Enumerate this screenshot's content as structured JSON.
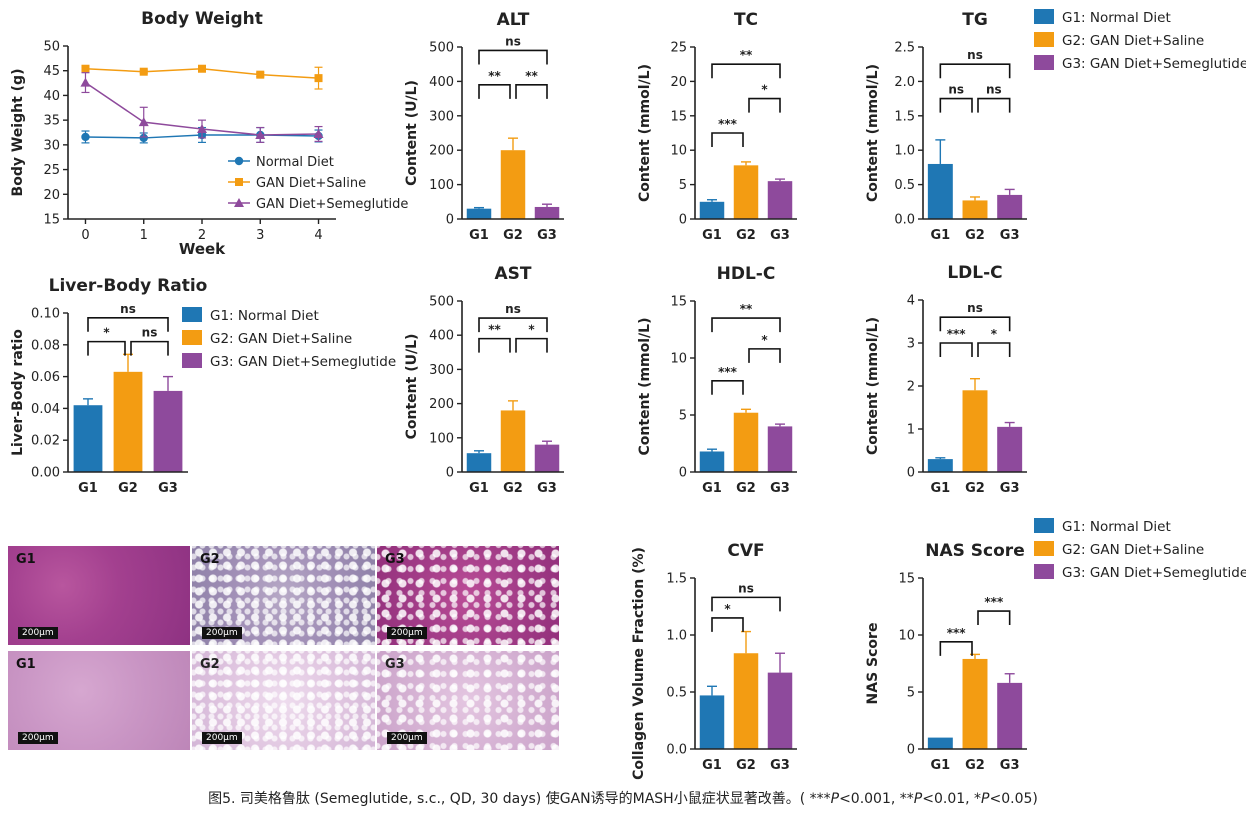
{
  "colors": {
    "G1": "#1f77b4",
    "G2": "#f39c12",
    "G3": "#8e4a9c",
    "axis": "#222222"
  },
  "legend_bar": [
    {
      "label": "G1: Normal Diet",
      "color": "#1f77b4"
    },
    {
      "label": "G2: GAN Diet+Saline",
      "color": "#f39c12"
    },
    {
      "label": "G3: GAN Diet+Semeglutide",
      "color": "#8e4a9c"
    }
  ],
  "histology": {
    "scale_label": "200μm",
    "rows": [
      [
        "G1",
        "G2",
        "G3"
      ],
      [
        "G1",
        "G2",
        "G3"
      ]
    ]
  },
  "caption": {
    "prefix": "图5. 司美格鲁肽 (Semeglutide, s.c., QD, 30 days) 使GAN诱导的MASH小鼠症状显著改善。( ***",
    "p": "P",
    "t1": "<0.001, **",
    "t2": "<0.01, *",
    "t3": "<0.05)"
  },
  "chart_data": [
    {
      "id": "body-weight",
      "type": "line",
      "title": "Body Weight",
      "xlabel": "Week",
      "ylabel": "Body Weight (g)",
      "x": [
        0,
        1,
        2,
        3,
        4
      ],
      "xlim": [
        -0.3,
        4.3
      ],
      "ylim": [
        15,
        50
      ],
      "yticks": [
        15,
        20,
        25,
        30,
        35,
        40,
        45,
        50
      ],
      "series": [
        {
          "name": "Normal Diet",
          "marker": "circle",
          "color": "#1f77b4",
          "values": [
            31.6,
            31.4,
            32.0,
            32.0,
            31.8
          ],
          "err": [
            1.2,
            1.0,
            1.5,
            1.5,
            1.2
          ]
        },
        {
          "name": "GAN Diet+Saline",
          "marker": "square",
          "color": "#f39c12",
          "values": [
            45.4,
            44.8,
            45.4,
            44.2,
            43.5
          ],
          "err": [
            0.3,
            0.3,
            0.3,
            0.4,
            2.2
          ]
        },
        {
          "name": "GAN Diet+Semeglutide",
          "marker": "triangle",
          "color": "#8e4a9c",
          "values": [
            42.6,
            34.6,
            33.2,
            32.0,
            32.2
          ],
          "err": [
            2.0,
            3.0,
            1.8,
            1.5,
            1.5
          ]
        }
      ],
      "legend": "bottom-right"
    },
    {
      "id": "liver-body-ratio",
      "type": "bar",
      "title": "Liver-Body Ratio",
      "ylabel": "Liver-Body ratio",
      "categories": [
        "G1",
        "G2",
        "G3"
      ],
      "values": [
        0.042,
        0.063,
        0.051
      ],
      "err": [
        0.004,
        0.011,
        0.009
      ],
      "ylim": [
        0,
        0.1
      ],
      "yticks": [
        0.0,
        0.02,
        0.04,
        0.06,
        0.08,
        0.1
      ],
      "ytick_labels": [
        "0.00",
        "0.02",
        "0.04",
        "0.06",
        "0.08",
        "0.10"
      ],
      "sig": [
        {
          "a": 0,
          "b": 1,
          "y": 0.082,
          "label": "*"
        },
        {
          "a": 1,
          "b": 2,
          "y": 0.082,
          "label": "ns"
        },
        {
          "a": 0,
          "b": 2,
          "y": 0.097,
          "label": "ns"
        }
      ],
      "legend": "right"
    },
    {
      "id": "alt",
      "type": "bar",
      "title": "ALT",
      "ylabel": "Content (U/L)",
      "categories": [
        "G1",
        "G2",
        "G3"
      ],
      "values": [
        30,
        200,
        35
      ],
      "err": [
        3,
        35,
        8
      ],
      "ylim": [
        0,
        500
      ],
      "yticks": [
        0,
        100,
        200,
        300,
        400,
        500
      ],
      "sig": [
        {
          "a": 0,
          "b": 1,
          "y": 390,
          "label": "**"
        },
        {
          "a": 1,
          "b": 2,
          "y": 390,
          "label": "**"
        },
        {
          "a": 0,
          "b": 2,
          "y": 490,
          "label": "ns"
        }
      ]
    },
    {
      "id": "tc",
      "type": "bar",
      "title": "TC",
      "ylabel": "Content (mmol/L)",
      "categories": [
        "G1",
        "G2",
        "G3"
      ],
      "values": [
        2.5,
        7.8,
        5.5
      ],
      "err": [
        0.3,
        0.5,
        0.3
      ],
      "ylim": [
        0,
        25
      ],
      "yticks": [
        0,
        5,
        10,
        15,
        20,
        25
      ],
      "sig": [
        {
          "a": 0,
          "b": 1,
          "y": 12.5,
          "label": "***"
        },
        {
          "a": 1,
          "b": 2,
          "y": 17.5,
          "label": "*"
        },
        {
          "a": 0,
          "b": 2,
          "y": 22.5,
          "label": "**"
        }
      ]
    },
    {
      "id": "tg",
      "type": "bar",
      "title": "TG",
      "ylabel": "Content (mmol/L)",
      "categories": [
        "G1",
        "G2",
        "G3"
      ],
      "values": [
        0.8,
        0.27,
        0.35
      ],
      "err": [
        0.35,
        0.05,
        0.08
      ],
      "ylim": [
        0,
        2.5
      ],
      "yticks": [
        0.0,
        0.5,
        1.0,
        1.5,
        2.0,
        2.5
      ],
      "ytick_labels": [
        "0.0",
        "0.5",
        "1.0",
        "1.5",
        "2.0",
        "2.5"
      ],
      "sig": [
        {
          "a": 0,
          "b": 1,
          "y": 1.75,
          "label": "ns"
        },
        {
          "a": 1,
          "b": 2,
          "y": 1.75,
          "label": "ns"
        },
        {
          "a": 0,
          "b": 2,
          "y": 2.25,
          "label": "ns"
        }
      ]
    },
    {
      "id": "ast",
      "type": "bar",
      "title": "AST",
      "ylabel": "Content (U/L)",
      "categories": [
        "G1",
        "G2",
        "G3"
      ],
      "values": [
        55,
        180,
        80
      ],
      "err": [
        7,
        28,
        10
      ],
      "ylim": [
        0,
        500
      ],
      "yticks": [
        0,
        100,
        200,
        300,
        400,
        500
      ],
      "sig": [
        {
          "a": 0,
          "b": 1,
          "y": 390,
          "label": "**"
        },
        {
          "a": 1,
          "b": 2,
          "y": 390,
          "label": "*"
        },
        {
          "a": 0,
          "b": 2,
          "y": 450,
          "label": "ns"
        }
      ]
    },
    {
      "id": "hdl-c",
      "type": "bar",
      "title": "HDL-C",
      "ylabel": "Content (mmol/L)",
      "categories": [
        "G1",
        "G2",
        "G3"
      ],
      "values": [
        1.8,
        5.2,
        4.0
      ],
      "err": [
        0.2,
        0.3,
        0.2
      ],
      "ylim": [
        0,
        15
      ],
      "yticks": [
        0,
        5,
        10,
        15
      ],
      "sig": [
        {
          "a": 0,
          "b": 1,
          "y": 8.0,
          "label": "***"
        },
        {
          "a": 1,
          "b": 2,
          "y": 10.8,
          "label": "*"
        },
        {
          "a": 0,
          "b": 2,
          "y": 13.5,
          "label": "**"
        }
      ]
    },
    {
      "id": "ldl-c",
      "type": "bar",
      "title": "LDL-C",
      "ylabel": "Content (mmol/L)",
      "categories": [
        "G1",
        "G2",
        "G3"
      ],
      "values": [
        0.3,
        1.9,
        1.05
      ],
      "err": [
        0.03,
        0.27,
        0.1
      ],
      "ylim": [
        0,
        4
      ],
      "yticks": [
        0,
        1,
        2,
        3,
        4
      ],
      "sig": [
        {
          "a": 0,
          "b": 1,
          "y": 3.0,
          "label": "***"
        },
        {
          "a": 1,
          "b": 2,
          "y": 3.0,
          "label": "*"
        },
        {
          "a": 0,
          "b": 2,
          "y": 3.6,
          "label": "ns"
        }
      ]
    },
    {
      "id": "cvf",
      "type": "bar",
      "title": "CVF",
      "ylabel": "Collagen Volume Fraction (%)",
      "categories": [
        "G1",
        "G2",
        "G3"
      ],
      "values": [
        0.47,
        0.84,
        0.67
      ],
      "err": [
        0.08,
        0.19,
        0.17
      ],
      "ylim": [
        0,
        1.5
      ],
      "yticks": [
        0.0,
        0.5,
        1.0,
        1.5
      ],
      "ytick_labels": [
        "0.0",
        "0.5",
        "1.0",
        "1.5"
      ],
      "sig": [
        {
          "a": 0,
          "b": 1,
          "y": 1.15,
          "label": "*"
        },
        {
          "a": 0,
          "b": 2,
          "y": 1.33,
          "label": "ns"
        }
      ]
    },
    {
      "id": "nas-score",
      "type": "bar",
      "title": "NAS Score",
      "ylabel": "NAS Score",
      "categories": [
        "G1",
        "G2",
        "G3"
      ],
      "values": [
        1.0,
        7.9,
        5.8
      ],
      "err": [
        0,
        0.4,
        0.8
      ],
      "ylim": [
        0,
        15
      ],
      "yticks": [
        0,
        5,
        10,
        15
      ],
      "sig": [
        {
          "a": 0,
          "b": 1,
          "y": 9.4,
          "label": "***"
        },
        {
          "a": 1,
          "b": 2,
          "y": 12.1,
          "label": "***"
        }
      ]
    }
  ]
}
